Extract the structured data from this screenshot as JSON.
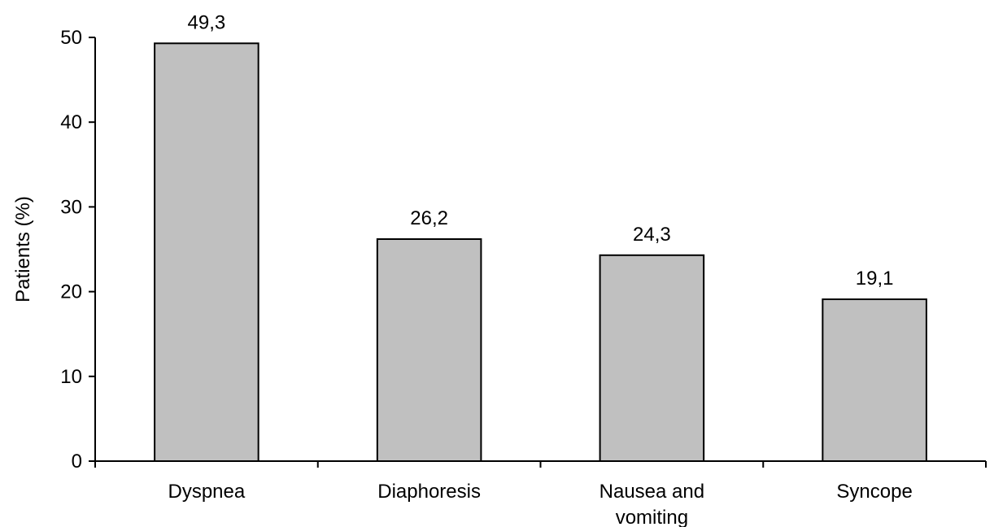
{
  "chart_data": {
    "type": "bar",
    "title": "",
    "xlabel": "",
    "ylabel": "Patients (%)",
    "ylim": [
      0,
      50
    ],
    "yticks": [
      0,
      10,
      20,
      30,
      40,
      50
    ],
    "grid": false,
    "categories": [
      "Dyspnea",
      "Diaphoresis",
      "Nausea and vomiting",
      "Syncope"
    ],
    "category_label_lines": [
      [
        "Dyspnea"
      ],
      [
        "Diaphoresis"
      ],
      [
        "Nausea and",
        "vomiting"
      ],
      [
        "Syncope"
      ]
    ],
    "values": [
      49.3,
      26.2,
      24.3,
      19.1
    ],
    "value_labels": [
      "49,3",
      "26,2",
      "24,3",
      "19,1"
    ],
    "bar_color": "#c0c0c0"
  }
}
